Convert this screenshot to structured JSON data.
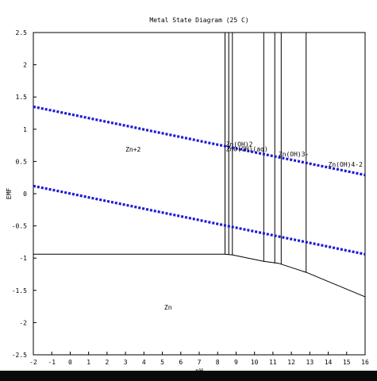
{
  "chart_data": {
    "type": "line",
    "title": "Metal State Diagram (25 C)",
    "xlabel": "pH",
    "ylabel": "EMF",
    "xlim": [
      -2,
      16
    ],
    "ylim": [
      -2.5,
      2.5
    ],
    "x_ticks": [
      -2,
      -1,
      0,
      1,
      2,
      3,
      4,
      5,
      6,
      7,
      8,
      9,
      10,
      11,
      12,
      13,
      14,
      15,
      16
    ],
    "y_ticks": [
      -2.5,
      -2,
      -1.5,
      -1,
      -0.5,
      0,
      0.5,
      1,
      1.5,
      2,
      2.5
    ],
    "grid": false,
    "boundaries": [
      {
        "points": [
          [
            -2,
            -0.94
          ],
          [
            8.4,
            -0.94
          ],
          [
            8.8,
            -0.95
          ],
          [
            10.5,
            -1.05
          ],
          [
            11.3,
            -1.08
          ],
          [
            12.8,
            -1.22
          ],
          [
            16,
            -1.6
          ]
        ]
      },
      {
        "points": [
          [
            8.4,
            2.5
          ],
          [
            8.4,
            -0.94
          ]
        ]
      },
      {
        "points": [
          [
            8.6,
            2.5
          ],
          [
            8.6,
            -0.95
          ]
        ]
      },
      {
        "points": [
          [
            8.8,
            2.5
          ],
          [
            8.8,
            -0.95
          ]
        ]
      },
      {
        "points": [
          [
            10.5,
            2.5
          ],
          [
            10.5,
            -1.05
          ]
        ]
      },
      {
        "points": [
          [
            11.1,
            2.5
          ],
          [
            11.1,
            -1.08
          ]
        ]
      },
      {
        "points": [
          [
            11.45,
            2.5
          ],
          [
            11.45,
            -1.1
          ]
        ]
      },
      {
        "points": [
          [
            12.8,
            2.5
          ],
          [
            12.8,
            -1.22
          ]
        ]
      }
    ],
    "water_lines": [
      {
        "points": [
          [
            -2,
            1.35
          ],
          [
            16,
            0.29
          ]
        ],
        "color": "#1a1ad6"
      },
      {
        "points": [
          [
            -2,
            0.12
          ],
          [
            16,
            -0.94
          ]
        ],
        "color": "#1a1ad6"
      }
    ],
    "region_labels": [
      {
        "text": "Zn+2",
        "x": 3,
        "y": 0.65
      },
      {
        "text": "Zn",
        "x": 5.1,
        "y": -1.8
      },
      {
        "text": "Zn(OH)2",
        "x": 8.45,
        "y": 0.73
      },
      {
        "text": "ZnO(OH)(aq)",
        "x": 8.45,
        "y": 0.66
      },
      {
        "text": "Zn(OH)3-",
        "x": 11.3,
        "y": 0.58
      },
      {
        "text": "Zn(OH)4-2",
        "x": 14.0,
        "y": 0.42
      }
    ]
  }
}
